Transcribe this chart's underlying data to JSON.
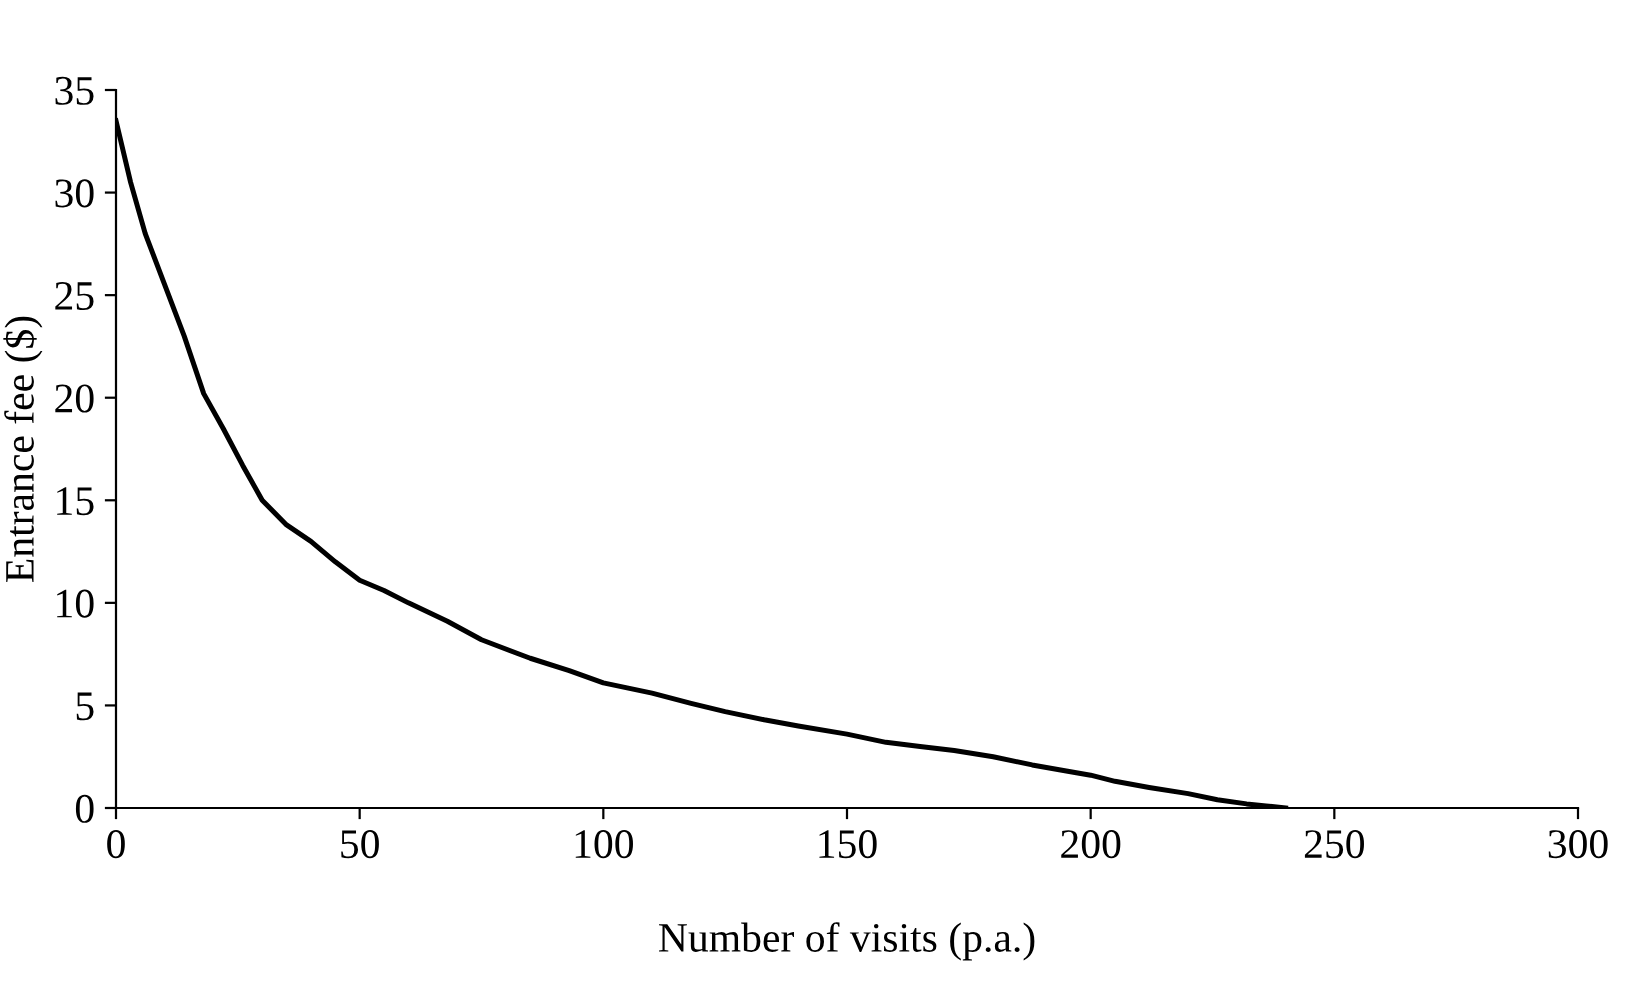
{
  "chart_data": {
    "type": "line",
    "xlabel": "Number of visits (p.a.)",
    "ylabel": "Entrance fee ($)",
    "series": [
      {
        "color": "#000000",
        "x": [
          0,
          3,
          6,
          10,
          14,
          18,
          22,
          26,
          30,
          35,
          40,
          45,
          50,
          55,
          60,
          68,
          75,
          85,
          93,
          100,
          110,
          118,
          125,
          133,
          140,
          150,
          158,
          165,
          172,
          180,
          188,
          195,
          200,
          205,
          212,
          220,
          226,
          232,
          236,
          240
        ],
        "values": [
          33.5,
          30.5,
          28,
          25.5,
          23,
          20.2,
          18.5,
          16.7,
          15,
          13.8,
          13,
          12,
          11.1,
          10.6,
          10,
          9.1,
          8.2,
          7.3,
          6.7,
          6.1,
          5.6,
          5.1,
          4.7,
          4.3,
          4,
          3.6,
          3.2,
          3,
          2.8,
          2.5,
          2.1,
          1.8,
          1.6,
          1.3,
          1,
          0.7,
          0.4,
          0.2,
          0.1,
          0
        ]
      }
    ],
    "xlim": [
      0,
      300
    ],
    "xticks": [
      0,
      50,
      100,
      150,
      200,
      250,
      300
    ],
    "ylim": [
      0,
      35
    ],
    "yticks": [
      0,
      5,
      10,
      15,
      20,
      25,
      30,
      35
    ],
    "grid": false,
    "legend": false,
    "marker": "none",
    "line_style": "solid"
  }
}
